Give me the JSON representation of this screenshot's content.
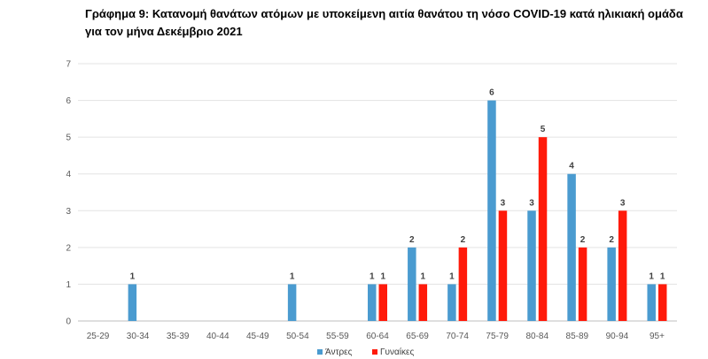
{
  "chart_data": {
    "type": "bar",
    "title": "Γράφημα 9: Κατανομή θανάτων ατόμων με υποκείμενη αιτία θανάτου τη νόσο COVID-19 κατά ηλικιακή ομάδα για τον μήνα Δεκέμβριο 2021",
    "categories": [
      "25-29",
      "30-34",
      "35-39",
      "40-44",
      "45-49",
      "50-54",
      "55-59",
      "60-64",
      "65-69",
      "70-74",
      "75-79",
      "80-84",
      "85-89",
      "90-94",
      "95+"
    ],
    "series": [
      {
        "name": "Άντρες",
        "color": "#4a9bd0",
        "values": [
          0,
          1,
          0,
          0,
          0,
          1,
          0,
          1,
          2,
          1,
          6,
          3,
          4,
          2,
          1
        ]
      },
      {
        "name": "Γυναίκες",
        "color": "#ff1a0a",
        "values": [
          0,
          0,
          0,
          0,
          0,
          0,
          0,
          1,
          1,
          2,
          3,
          5,
          2,
          3,
          1
        ]
      }
    ],
    "yticks": [
      "0",
      "1",
      "2",
      "3",
      "4",
      "5",
      "6",
      "7"
    ],
    "ylim": [
      0,
      7
    ],
    "grid": true,
    "legend": "bottom"
  }
}
